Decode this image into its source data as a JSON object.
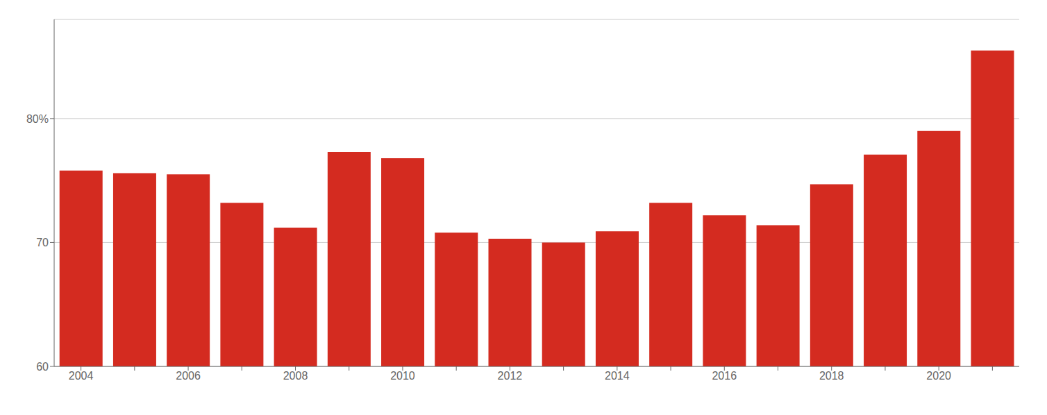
{
  "chart_data": {
    "type": "bar",
    "categories": [
      "2004",
      null,
      "2006",
      null,
      "2008",
      null,
      "2010",
      null,
      "2012",
      null,
      "2014",
      null,
      "2016",
      null,
      "2018",
      null,
      "2020",
      null
    ],
    "values": [
      75.8,
      75.6,
      75.5,
      73.2,
      71.2,
      77.3,
      76.8,
      70.8,
      70.3,
      70.0,
      70.9,
      73.2,
      72.2,
      71.4,
      74.7,
      77.1,
      79.0,
      85.5
    ],
    "color": "#d42b20",
    "ylim": [
      60,
      88
    ],
    "yticks": [
      60,
      70,
      {
        "value": 80,
        "label": "80%"
      }
    ],
    "grid": true
  }
}
